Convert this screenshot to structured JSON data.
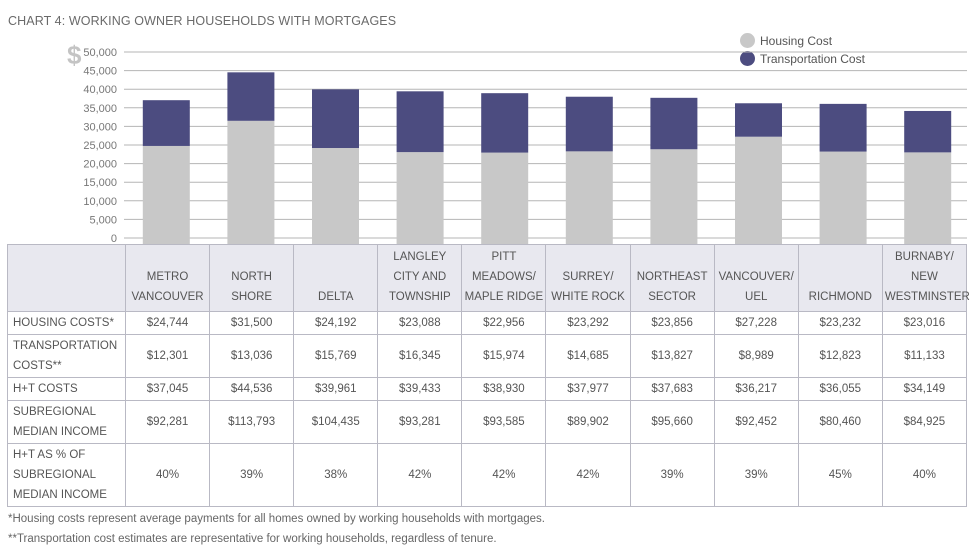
{
  "title": "CHART 4:  WORKING OWNER HOUSEHOLDS WITH MORTGAGES",
  "currency_symbol": "$",
  "colors": {
    "housing": "#c8c8c8",
    "transportation": "#4c4c80",
    "grid": "#b5b5b5",
    "table_header": "#e8e8ef"
  },
  "legend": [
    {
      "label": "Housing Cost",
      "color": "#c8c8c8"
    },
    {
      "label": "Transportation Cost",
      "color": "#4c4c80"
    }
  ],
  "chart_data": {
    "type": "bar",
    "stacked": true,
    "categories": [
      "METRO VANCOUVER",
      "NORTH SHORE",
      "DELTA",
      "LANGLEY CITY AND TOWNSHIP",
      "PITT MEADOWS/ MAPLE RIDGE",
      "SURREY/ WHITE ROCK",
      "NORTHEAST SECTOR",
      "VANCOUVER/ UEL",
      "RICHMOND",
      "BURNABY/ NEW WESTMINSTER"
    ],
    "series": [
      {
        "name": "Housing Cost",
        "values": [
          24744,
          31500,
          24192,
          23088,
          22956,
          23292,
          23856,
          27228,
          23232,
          23016
        ]
      },
      {
        "name": "Transportation Cost",
        "values": [
          12301,
          13036,
          15769,
          16345,
          15974,
          14685,
          13827,
          8989,
          12823,
          11133
        ]
      }
    ],
    "ylim": [
      0,
      50000
    ],
    "yticks": [
      "0",
      "5,000",
      "10,000",
      "15,000",
      "20,000",
      "25,000",
      "30,000",
      "35,000",
      "40,000",
      "45,000",
      "50,000"
    ],
    "grid": true,
    "legend_position": "top-right"
  },
  "table": {
    "columns": [
      [
        "METRO",
        "VANCOUVER"
      ],
      [
        "NORTH",
        "SHORE"
      ],
      [
        "DELTA"
      ],
      [
        "LANGLEY",
        "CITY AND",
        "TOWNSHIP"
      ],
      [
        "PITT",
        "MEADOWS/",
        "MAPLE RIDGE"
      ],
      [
        "SURREY/",
        "WHITE ROCK"
      ],
      [
        "NORTHEAST",
        "SECTOR"
      ],
      [
        "VANCOUVER/",
        "UEL"
      ],
      [
        "RICHMOND"
      ],
      [
        "BURNABY/",
        "NEW",
        "WESTMINSTER"
      ]
    ],
    "rows": [
      {
        "label": [
          "HOUSING COSTS*"
        ],
        "values": [
          "$24,744",
          "$31,500",
          "$24,192",
          "$23,088",
          "$22,956",
          "$23,292",
          "$23,856",
          "$27,228",
          "$23,232",
          "$23,016"
        ]
      },
      {
        "label": [
          "TRANSPORTATION",
          "COSTS**"
        ],
        "values": [
          "$12,301",
          "$13,036",
          "$15,769",
          "$16,345",
          "$15,974",
          "$14,685",
          "$13,827",
          "$8,989",
          "$12,823",
          "$11,133"
        ]
      },
      {
        "label": [
          "H+T COSTS"
        ],
        "values": [
          "$37,045",
          "$44,536",
          "$39,961",
          "$39,433",
          "$38,930",
          "$37,977",
          "$37,683",
          "$36,217",
          "$36,055",
          "$34,149"
        ]
      },
      {
        "label": [
          "SUBREGIONAL",
          "MEDIAN INCOME"
        ],
        "values": [
          "$92,281",
          "$113,793",
          "$104,435",
          "$93,281",
          "$93,585",
          "$89,902",
          "$95,660",
          "$92,452",
          "$80,460",
          "$84,925"
        ]
      },
      {
        "label": [
          "H+T AS % OF",
          "SUBREGIONAL",
          "MEDIAN INCOME"
        ],
        "values": [
          "40%",
          "39%",
          "38%",
          "42%",
          "42%",
          "42%",
          "39%",
          "39%",
          "45%",
          "40%"
        ]
      }
    ]
  },
  "footnotes": [
    "*Housing costs represent average payments for all homes owned by working households with mortgages.",
    "**Transportation cost estimates are representative for working households, regardless of tenure."
  ]
}
